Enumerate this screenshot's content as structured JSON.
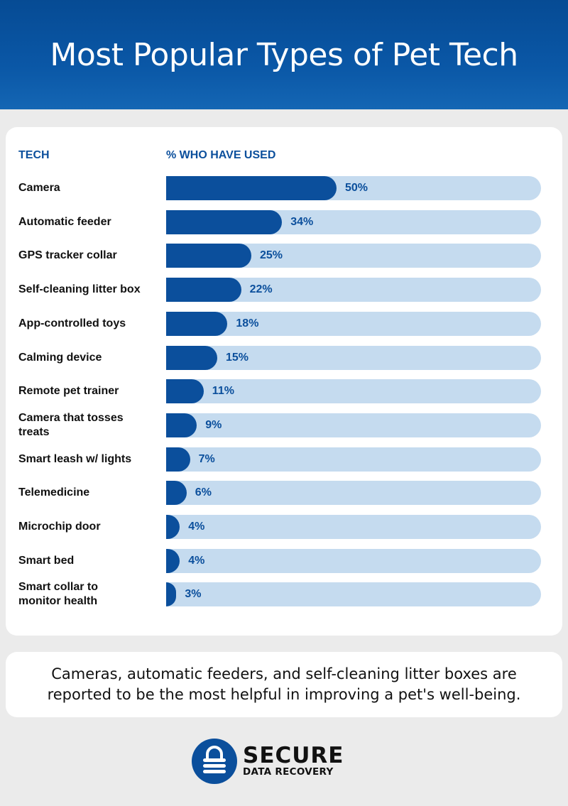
{
  "header": {
    "title": "Most Popular Types of Pet Tech"
  },
  "chart_data": {
    "type": "bar",
    "orientation": "horizontal",
    "title": "Most Popular Types of Pet Tech",
    "xlabel": "% WHO HAVE USED",
    "ylabel": "TECH",
    "xlim": [
      0,
      110
    ],
    "categories": [
      "Camera",
      "Automatic feeder",
      "GPS tracker collar",
      "Self-cleaning litter box",
      "App-controlled toys",
      "Calming device",
      "Remote pet trainer",
      "Camera that tosses treats",
      "Smart leash w/ lights",
      "Telemedicine",
      "Microchip door",
      "Smart bed",
      "Smart collar to monitor health"
    ],
    "values": [
      50,
      34,
      25,
      22,
      18,
      15,
      11,
      9,
      7,
      6,
      4,
      4,
      3
    ],
    "value_labels": [
      "50%",
      "34%",
      "25%",
      "22%",
      "18%",
      "15%",
      "11%",
      "9%",
      "7%",
      "6%",
      "4%",
      "4%",
      "3%"
    ],
    "colors": {
      "fill": "#0b4f9c",
      "track": "#c5dbef"
    }
  },
  "note": "Cameras, automatic feeders, and self-cleaning litter boxes are reported to be the most helpful in improving a pet's well-being.",
  "logo": {
    "line1": "SECURE",
    "line2": "DATA RECOVERY",
    "icon": "padlock-icon"
  }
}
